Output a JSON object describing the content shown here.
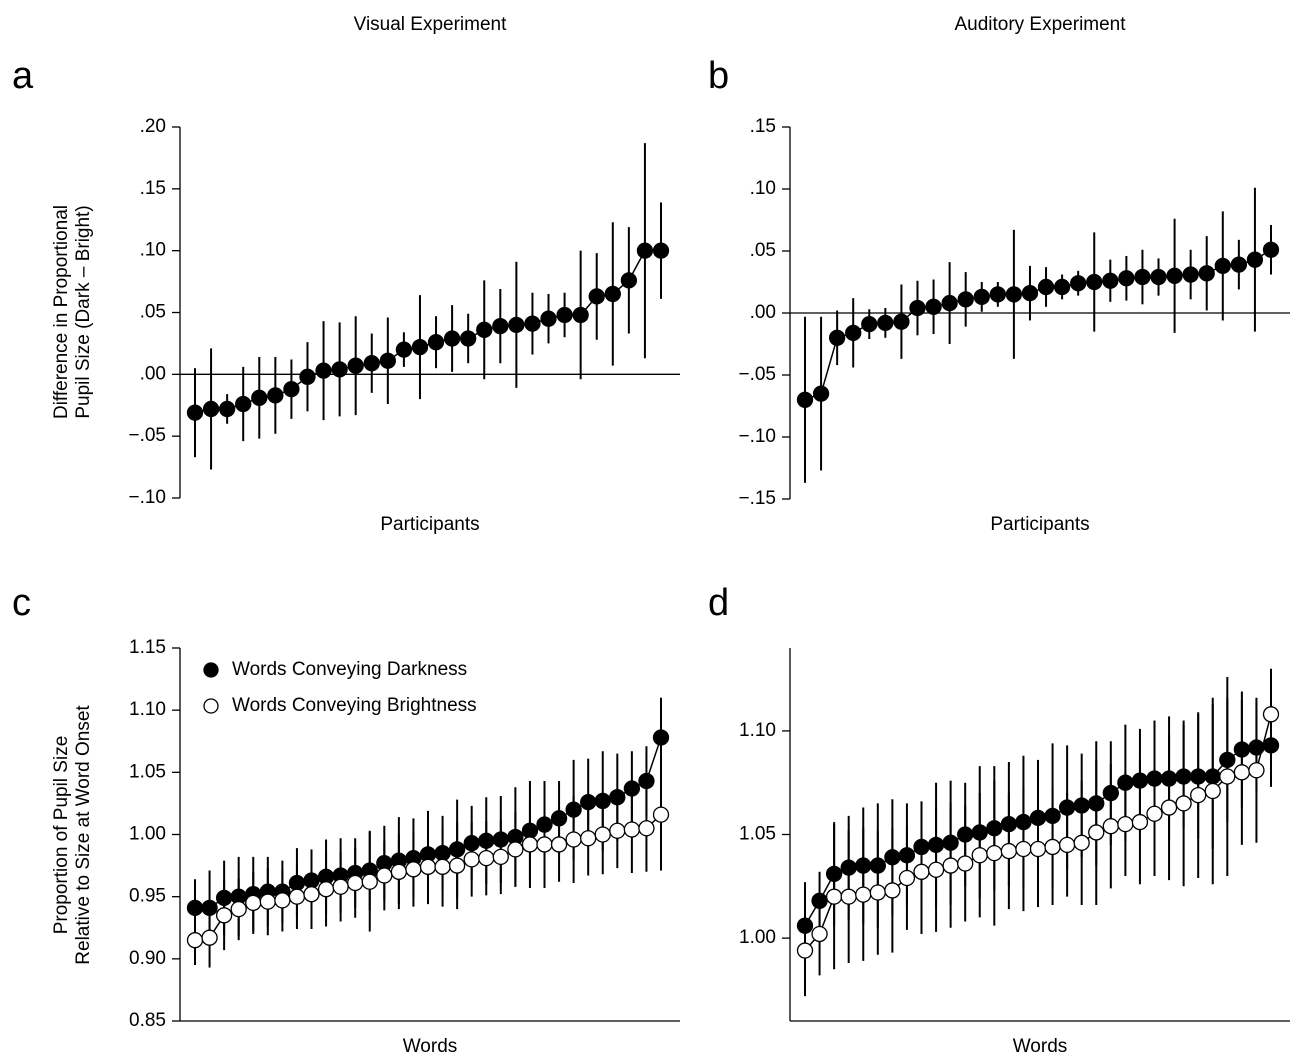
{
  "chart_data": [
    {
      "type": "line",
      "title": "Visual Experiment",
      "panel_label": "a",
      "xlabel": "Participants",
      "ylabel": [
        "Difference in Proportional",
        "Pupil Size (Dark – Bright)"
      ],
      "ylim": [
        -0.1,
        0.2
      ],
      "zero_line": true,
      "x_axis_line": false,
      "yticks": [
        {
          "value": 0.2,
          "label": ".20"
        },
        {
          "value": 0.15,
          "label": ".15"
        },
        {
          "value": 0.1,
          "label": ".10"
        },
        {
          "value": 0.05,
          "label": ".05"
        },
        {
          "value": 0,
          "label": ".00"
        },
        {
          "value": -0.05,
          "label": "−.05"
        },
        {
          "value": -0.1,
          "label": "−.10"
        }
      ],
      "series": [
        {
          "color": "#000000",
          "fill": "#000000",
          "values": [
            -0.031,
            -0.028,
            -0.028,
            -0.024,
            -0.019,
            -0.017,
            -0.012,
            -0.002,
            0.003,
            0.004,
            0.007,
            0.009,
            0.011,
            0.02,
            0.022,
            0.026,
            0.029,
            0.029,
            0.036,
            0.039,
            0.04,
            0.041,
            0.045,
            0.048,
            0.048,
            0.063,
            0.065,
            0.076,
            0.1,
            0.1
          ],
          "errors": [
            0.036,
            0.049,
            0.012,
            0.03,
            0.033,
            0.031,
            0.024,
            0.028,
            0.04,
            0.038,
            0.04,
            0.024,
            0.035,
            0.014,
            0.042,
            0.021,
            0.027,
            0.02,
            0.04,
            0.03,
            0.051,
            0.025,
            0.02,
            0.018,
            0.052,
            0.035,
            0.058,
            0.043,
            0.087,
            0.039
          ]
        }
      ]
    },
    {
      "type": "line",
      "title": "Auditory Experiment",
      "panel_label": "b",
      "xlabel": "Participants",
      "ylim": [
        -0.15,
        0.15
      ],
      "zero_line": true,
      "x_axis_line": false,
      "yticks": [
        {
          "value": 0.15,
          "label": ".15"
        },
        {
          "value": 0.1,
          "label": ".10"
        },
        {
          "value": 0.05,
          "label": ".05"
        },
        {
          "value": 0,
          "label": ".00"
        },
        {
          "value": -0.05,
          "label": "−.05"
        },
        {
          "value": -0.1,
          "label": "−.10"
        },
        {
          "value": -0.15,
          "label": "−.15"
        }
      ],
      "series": [
        {
          "color": "#000000",
          "fill": "#000000",
          "values": [
            -0.07,
            -0.065,
            -0.02,
            -0.016,
            -0.009,
            -0.008,
            -0.007,
            0.004,
            0.005,
            0.008,
            0.011,
            0.013,
            0.015,
            0.015,
            0.016,
            0.021,
            0.021,
            0.024,
            0.025,
            0.026,
            0.028,
            0.029,
            0.029,
            0.03,
            0.031,
            0.032,
            0.038,
            0.039,
            0.043,
            0.051
          ],
          "errors": [
            0.067,
            0.062,
            0.022,
            0.028,
            0.012,
            0.012,
            0.03,
            0.022,
            0.022,
            0.033,
            0.022,
            0.012,
            0.01,
            0.052,
            0.022,
            0.016,
            0.01,
            0.01,
            0.04,
            0.017,
            0.018,
            0.022,
            0.015,
            0.046,
            0.02,
            0.03,
            0.044,
            0.02,
            0.058,
            0.02
          ]
        }
      ]
    },
    {
      "type": "line",
      "panel_label": "c",
      "xlabel": "Words",
      "ylabel": [
        "Proportion of Pupil Size",
        "Relative to Size at Word Onset"
      ],
      "ylim": [
        0.85,
        1.15
      ],
      "zero_line": false,
      "x_axis_line": true,
      "legend": "upper left",
      "yticks": [
        1.15,
        {
          "value": 1.1,
          "label": "1.10"
        },
        1.05,
        {
          "value": 1.0,
          "label": "1.00"
        },
        0.95,
        {
          "value": 0.9,
          "label": "0.90"
        },
        0.85
      ],
      "series": [
        {
          "name": "Words Conveying Darkness",
          "color": "#000000",
          "fill": "#000000",
          "values": [
            0.941,
            0.941,
            0.949,
            0.95,
            0.952,
            0.954,
            0.954,
            0.961,
            0.963,
            0.966,
            0.967,
            0.969,
            0.971,
            0.977,
            0.979,
            0.981,
            0.984,
            0.985,
            0.988,
            0.993,
            0.995,
            0.996,
            0.998,
            1.003,
            1.008,
            1.013,
            1.02,
            1.026,
            1.027,
            1.03,
            1.037,
            1.043,
            1.078
          ],
          "errors": [
            0.023,
            0.03,
            0.03,
            0.032,
            0.03,
            0.028,
            0.025,
            0.028,
            0.025,
            0.03,
            0.03,
            0.028,
            0.032,
            0.03,
            0.035,
            0.032,
            0.035,
            0.03,
            0.04,
            0.03,
            0.035,
            0.035,
            0.04,
            0.04,
            0.035,
            0.03,
            0.04,
            0.035,
            0.04,
            0.035,
            0.03,
            0.028,
            0.032
          ]
        },
        {
          "name": "Words Conveying Brightness",
          "color": "#000000",
          "fill": "#ffffff",
          "values": [
            0.915,
            0.917,
            0.935,
            0.94,
            0.945,
            0.946,
            0.947,
            0.95,
            0.952,
            0.956,
            0.958,
            0.961,
            0.962,
            0.967,
            0.97,
            0.972,
            0.974,
            0.974,
            0.975,
            0.98,
            0.981,
            0.982,
            0.988,
            0.992,
            0.992,
            0.992,
            0.996,
            0.997,
            1.0,
            1.003,
            1.004,
            1.005,
            1.016
          ],
          "errors": [
            0.02,
            0.024,
            0.028,
            0.025,
            0.025,
            0.027,
            0.025,
            0.026,
            0.028,
            0.03,
            0.028,
            0.028,
            0.04,
            0.028,
            0.03,
            0.03,
            0.03,
            0.032,
            0.035,
            0.03,
            0.03,
            0.03,
            0.03,
            0.035,
            0.035,
            0.03,
            0.035,
            0.03,
            0.032,
            0.03,
            0.035,
            0.035,
            0.045
          ]
        }
      ]
    },
    {
      "type": "line",
      "panel_label": "d",
      "xlabel": "Words",
      "ylim": [
        0.96,
        1.14
      ],
      "zero_line": false,
      "x_axis_line": true,
      "yticks": [
        {
          "value": 1.1,
          "label": "1.10"
        },
        1.05,
        {
          "value": 1.0,
          "label": "1.00"
        }
      ],
      "series": [
        {
          "color": "#000000",
          "fill": "#000000",
          "values": [
            1.006,
            1.018,
            1.031,
            1.034,
            1.035,
            1.035,
            1.039,
            1.04,
            1.044,
            1.045,
            1.046,
            1.05,
            1.051,
            1.053,
            1.055,
            1.056,
            1.058,
            1.059,
            1.063,
            1.064,
            1.065,
            1.07,
            1.075,
            1.076,
            1.077,
            1.077,
            1.078,
            1.078,
            1.078,
            1.086,
            1.091,
            1.092,
            1.093
          ],
          "errors": [
            0.021,
            0.014,
            0.025,
            0.025,
            0.028,
            0.03,
            0.028,
            0.025,
            0.022,
            0.03,
            0.03,
            0.025,
            0.032,
            0.03,
            0.03,
            0.032,
            0.028,
            0.035,
            0.03,
            0.025,
            0.03,
            0.025,
            0.028,
            0.025,
            0.028,
            0.03,
            0.025,
            0.03,
            0.035,
            0.03,
            0.028,
            0.022,
            0.02
          ]
        },
        {
          "color": "#000000",
          "fill": "#ffffff",
          "values": [
            0.994,
            1.002,
            1.02,
            1.02,
            1.021,
            1.022,
            1.023,
            1.029,
            1.032,
            1.033,
            1.035,
            1.036,
            1.04,
            1.041,
            1.042,
            1.043,
            1.043,
            1.044,
            1.045,
            1.046,
            1.051,
            1.054,
            1.055,
            1.056,
            1.06,
            1.063,
            1.065,
            1.069,
            1.071,
            1.078,
            1.08,
            1.081,
            1.108
          ],
          "errors": [
            0.022,
            0.02,
            0.035,
            0.032,
            0.032,
            0.03,
            0.03,
            0.025,
            0.03,
            0.03,
            0.03,
            0.028,
            0.03,
            0.035,
            0.028,
            0.03,
            0.028,
            0.028,
            0.025,
            0.03,
            0.035,
            0.03,
            0.025,
            0.03,
            0.03,
            0.035,
            0.04,
            0.04,
            0.045,
            0.048,
            0.035,
            0.035,
            0.022
          ]
        }
      ]
    }
  ]
}
